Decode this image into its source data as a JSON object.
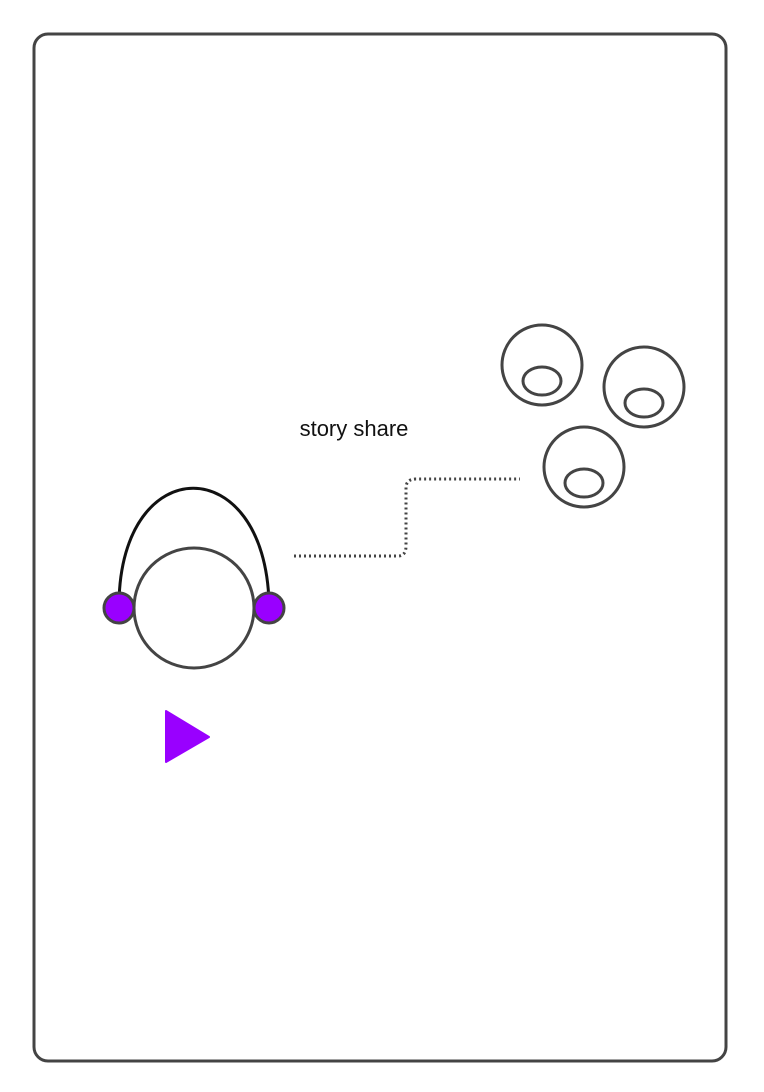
{
  "caption": "story share",
  "colors": {
    "accent": "#9900ff",
    "stroke": "#444444",
    "headband": "#111111",
    "background": "#ffffff"
  },
  "icons": {
    "listener": "headphones-listener-icon",
    "play": "play-icon",
    "audience": "audience-heads-icon",
    "connector": "dotted-connector"
  }
}
